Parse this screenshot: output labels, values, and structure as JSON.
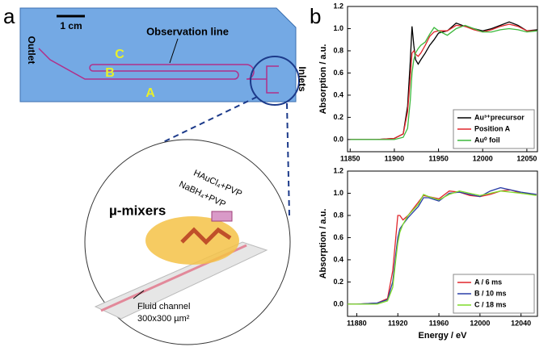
{
  "panel_a": {
    "label": "a",
    "scale_bar": "1 cm",
    "outlet": "Outlet",
    "observation_line": "Observation line",
    "points": [
      "C",
      "B",
      "A"
    ],
    "inlets": "Inlets",
    "reagents": [
      "HAuCl₄+PVP",
      "NaBH₄+PVP"
    ],
    "mixers": "µ-mixers",
    "channel": [
      "Fluid channel",
      "300x300 µm²"
    ]
  },
  "panel_b": {
    "label": "b"
  },
  "chart_data": [
    {
      "type": "line",
      "y_label": "Absorption / a.u.",
      "x": [
        11850,
        11880,
        11900,
        11910,
        11915,
        11918,
        11920,
        11922,
        11924,
        11927,
        11930,
        11935,
        11940,
        11945,
        11950,
        11960,
        11970,
        11980,
        11990,
        12000,
        12010,
        12020,
        12030,
        12040,
        12050,
        12062
      ],
      "series": [
        {
          "name": "Au³⁺precursor",
          "color": "#000000",
          "values": [
            0,
            0,
            0.01,
            0.05,
            0.3,
            0.7,
            1.02,
            0.85,
            0.72,
            0.68,
            0.72,
            0.78,
            0.85,
            0.9,
            0.96,
            0.98,
            1.05,
            1.02,
            1.0,
            0.98,
            1.0,
            1.03,
            1.06,
            1.03,
            0.98,
            0.99
          ]
        },
        {
          "name": "Position A",
          "color": "#e0262b",
          "values": [
            0,
            0,
            0.01,
            0.05,
            0.25,
            0.55,
            0.78,
            0.8,
            0.77,
            0.75,
            0.78,
            0.85,
            0.93,
            0.97,
            0.98,
            0.98,
            1.03,
            1.02,
            0.99,
            0.97,
            0.99,
            1.02,
            1.04,
            1.02,
            0.98,
            0.98
          ]
        },
        {
          "name": "Au⁰ foil",
          "color": "#3cb83c",
          "values": [
            0,
            0,
            0,
            0.02,
            0.1,
            0.35,
            0.6,
            0.72,
            0.78,
            0.82,
            0.85,
            0.88,
            0.95,
            1.01,
            0.98,
            0.94,
            1.0,
            1.03,
            1.0,
            0.97,
            0.97,
            0.99,
            1.0,
            0.99,
            0.97,
            0.98
          ]
        }
      ],
      "xlim": [
        11847,
        12062
      ],
      "xticks": [
        11850,
        11900,
        11950,
        12000,
        12050
      ],
      "ylim": [
        -0.11,
        1.2
      ],
      "yticks": [
        {
          "value": 0,
          "label": "0.0"
        },
        0.2,
        0.4,
        0.6,
        0.8,
        {
          "value": 1,
          "label": "1.0"
        },
        1.2
      ],
      "legend": "lower right"
    },
    {
      "type": "line",
      "x_label": "Energy / eV",
      "y_label": "Absorption / a.u.",
      "x": [
        11871,
        11880,
        11900,
        11910,
        11915,
        11918,
        11920,
        11922,
        11925,
        11930,
        11940,
        11945,
        11950,
        11960,
        11970,
        11980,
        11990,
        12000,
        12010,
        12020,
        12030,
        12040,
        12055
      ],
      "series": [
        {
          "name": "A / 6 ms",
          "color": "#e0262b",
          "values": [
            0,
            0,
            0.01,
            0.05,
            0.3,
            0.6,
            0.8,
            0.8,
            0.76,
            0.8,
            0.92,
            0.98,
            0.97,
            0.95,
            1.02,
            1.01,
            0.98,
            0.97,
            0.99,
            1.02,
            1.03,
            1.0,
            0.99
          ]
        },
        {
          "name": "B / 10 ms",
          "color": "#2a3ea8",
          "values": [
            0,
            0,
            0.01,
            0.04,
            0.2,
            0.45,
            0.6,
            0.68,
            0.72,
            0.78,
            0.88,
            0.96,
            0.96,
            0.93,
            1.0,
            1.01,
            0.99,
            0.97,
            1.02,
            1.05,
            1.03,
            1.01,
            0.99
          ]
        },
        {
          "name": "C / 18 ms",
          "color": "#7fdc2a",
          "values": [
            0,
            0,
            0,
            0.03,
            0.15,
            0.4,
            0.55,
            0.65,
            0.72,
            0.8,
            0.9,
            0.99,
            0.97,
            0.94,
            0.99,
            1.02,
            1.0,
            0.98,
            1.0,
            1.02,
            1.01,
            1.0,
            0.98
          ]
        }
      ],
      "xlim": [
        11871,
        12056
      ],
      "xticks": [
        11880,
        11920,
        11960,
        12000,
        12040
      ],
      "ylim": [
        -0.11,
        1.2
      ],
      "yticks": [
        {
          "value": 0,
          "label": "0.0"
        },
        0.2,
        0.4,
        0.6,
        0.8,
        {
          "value": 1,
          "label": "1.0"
        },
        1.2
      ],
      "legend": "lower right"
    }
  ]
}
